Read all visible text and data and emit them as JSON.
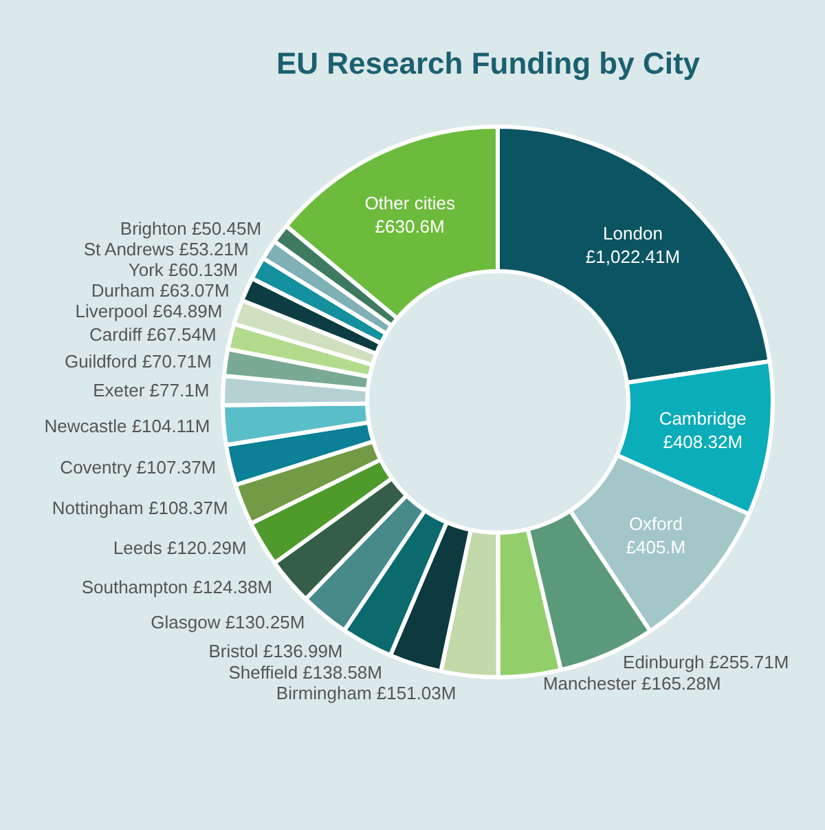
{
  "chart_data": {
    "type": "donut",
    "title": "EU Research Funding by City",
    "categories": [
      "London",
      "Cambridge",
      "Oxford",
      "Edinburgh",
      "Manchester",
      "Birmingham",
      "Sheffield",
      "Bristol",
      "Glasgow",
      "Southampton",
      "Leeds",
      "Nottingham",
      "Coventry",
      "Newcastle",
      "Exeter",
      "Guildford",
      "Cardiff",
      "Liverpool",
      "Durham",
      "York",
      "St Andrews",
      "Brighton",
      "Other cities"
    ],
    "values": [
      1022.41,
      408.32,
      405,
      255.71,
      165.28,
      151.03,
      138.58,
      136.99,
      130.25,
      124.38,
      120.29,
      108.37,
      107.37,
      104.11,
      77.1,
      70.71,
      67.54,
      64.89,
      63.07,
      60.13,
      53.21,
      50.45,
      630.6
    ],
    "value_labels": [
      "£1,022.41M",
      "£408.32M",
      "£405.M",
      "£255.71M",
      "£165.28M",
      "£151.03M",
      "£138.58M",
      "£136.99M",
      "£130.25M",
      "£124.38M",
      "£120.29M",
      "£108.37M",
      "£107.37M",
      "£104.11M",
      "£77.1M",
      "£70.71M",
      "£67.54M",
      "£64.89M",
      "£63.07M",
      "£60.13M",
      "£53.21M",
      "£50.45M",
      "£630.6M"
    ],
    "colors": [
      "#0b5563",
      "#0aadb9",
      "#a3c6c8",
      "#5a9a7a",
      "#92cf6a",
      "#c3d9a9",
      "#0d3a3e",
      "#0b6a6e",
      "#478a8a",
      "#345e48",
      "#4e9a2a",
      "#739a44",
      "#0b8096",
      "#5abec8",
      "#b5d1d3",
      "#7aaa93",
      "#b2db8e",
      "#cfe0bf",
      "#0d3d43",
      "#14909e",
      "#7eb0b6",
      "#3e7a60",
      "#6cbb3c"
    ],
    "legend": false
  }
}
